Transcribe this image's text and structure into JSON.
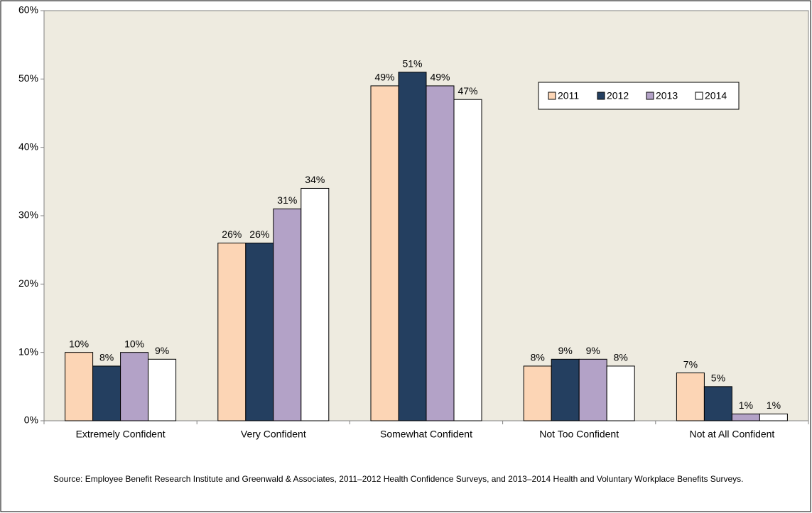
{
  "chart_data": {
    "type": "bar",
    "categories": [
      "Extremely Confident",
      "Very Confident",
      "Somewhat Confident",
      "Not Too Confident",
      "Not at All Confident"
    ],
    "series": [
      {
        "name": "2011",
        "color": "#fcd5b5",
        "values": [
          10,
          26,
          49,
          8,
          7
        ],
        "value_labels": [
          "10%",
          "26%",
          "49%",
          "8%",
          "7%"
        ]
      },
      {
        "name": "2012",
        "color": "#243f60",
        "values": [
          8,
          26,
          51,
          9,
          5
        ],
        "value_labels": [
          "8%",
          "26%",
          "51%",
          "9%",
          "5%"
        ]
      },
      {
        "name": "2013",
        "color": "#b3a2c7",
        "values": [
          10,
          31,
          49,
          9,
          1
        ],
        "value_labels": [
          "10%",
          "31%",
          "49%",
          "9%",
          "1%"
        ]
      },
      {
        "name": "2014",
        "color": "#ffffff",
        "values": [
          9,
          34,
          47,
          8,
          1
        ],
        "value_labels": [
          "9%",
          "34%",
          "47%",
          "8%",
          "1%"
        ]
      }
    ],
    "ylim": [
      0,
      60
    ],
    "yticks": [
      {
        "value": 0,
        "label": "0%"
      },
      {
        "value": 10,
        "label": "10%"
      },
      {
        "value": 20,
        "label": "20%"
      },
      {
        "value": 30,
        "label": "30%"
      },
      {
        "value": 40,
        "label": "40%"
      },
      {
        "value": 50,
        "label": "50%"
      },
      {
        "value": 60,
        "label": "60%"
      }
    ],
    "grid": false,
    "legend": "upper right",
    "plot_background": "#eeebe0",
    "source": "Source: Employee Benefit Research Institute and Greenwald & Associates, 2011‒2012 Health Confidence Surveys, and 2013‒2014 Health and Voluntary Workplace Benefits Surveys."
  }
}
